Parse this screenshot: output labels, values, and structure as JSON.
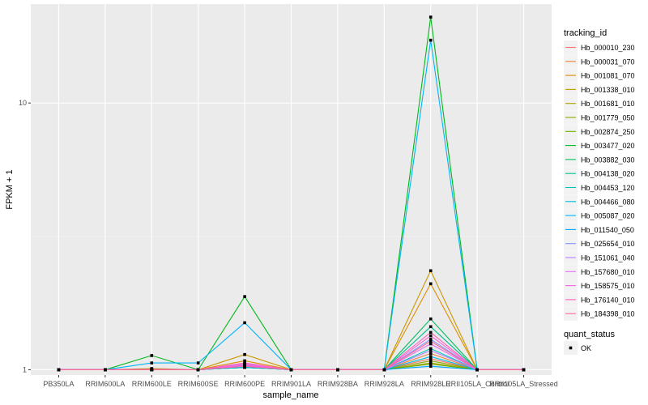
{
  "chart_data": {
    "type": "line",
    "title": "",
    "xlabel": "sample_name",
    "ylabel": "FPKM + 1",
    "y_scale": "log10",
    "ylim": [
      0.955,
      23.5
    ],
    "y_ticks": [
      1,
      10
    ],
    "y_tick_labels": [
      "1",
      "10"
    ],
    "categories": [
      "PB350LA",
      "RRIM600LA",
      "RRIM600LE",
      "RRIM600SE",
      "RRIM600PE",
      "RRIM901LA",
      "RRIM928BA",
      "RRIM928LA",
      "RRIM928LE",
      "RRII105LA_Control",
      "RRII105LA_Stressed"
    ],
    "legend_title": "tracking_id",
    "series": [
      {
        "name": "Hb_000010_230",
        "color": "#F8766D",
        "values": [
          1,
          1,
          1.0,
          1.0,
          1.03,
          1,
          1,
          1,
          1.1,
          1,
          1
        ]
      },
      {
        "name": "Hb_000031_070",
        "color": "#EC8239",
        "values": [
          1,
          1,
          1.0,
          1.0,
          1.02,
          1,
          1,
          1,
          1.15,
          1,
          1
        ]
      },
      {
        "name": "Hb_001081_070",
        "color": "#DB8E00",
        "values": [
          1,
          1,
          1.0,
          1.0,
          1.08,
          1,
          1,
          1,
          2.1,
          1,
          1
        ]
      },
      {
        "name": "Hb_001338_010",
        "color": "#C79800",
        "values": [
          1,
          1,
          1.01,
          1.0,
          1.14,
          1,
          1,
          1,
          2.35,
          1,
          1
        ]
      },
      {
        "name": "Hb_001681_010",
        "color": "#AEA200",
        "values": [
          1,
          1,
          1.0,
          1.0,
          1.05,
          1,
          1,
          1,
          1.06,
          1,
          1
        ]
      },
      {
        "name": "Hb_001779_050",
        "color": "#8FAA00",
        "values": [
          1,
          1,
          1.0,
          1.0,
          1.04,
          1,
          1,
          1,
          1.08,
          1,
          1
        ]
      },
      {
        "name": "Hb_002874_250",
        "color": "#64B200",
        "values": [
          1,
          1,
          1.0,
          1.0,
          1.02,
          1,
          1,
          1,
          1.05,
          1,
          1
        ]
      },
      {
        "name": "Hb_003477_020",
        "color": "#00B81B",
        "values": [
          1,
          1,
          1.13,
          1.0,
          1.88,
          1,
          1,
          1,
          21.0,
          1,
          1
        ]
      },
      {
        "name": "Hb_003882_030",
        "color": "#00BD5C",
        "values": [
          1,
          1,
          1.0,
          1.0,
          1.03,
          1,
          1,
          1,
          1.55,
          1,
          1
        ]
      },
      {
        "name": "Hb_004138_020",
        "color": "#00C08E",
        "values": [
          1,
          1,
          1.0,
          1.0,
          1.02,
          1,
          1,
          1,
          1.45,
          1,
          1
        ]
      },
      {
        "name": "Hb_004453_120",
        "color": "#00C1B7",
        "values": [
          1,
          1,
          1.0,
          1.0,
          1.02,
          1,
          1,
          1,
          1.2,
          1,
          1
        ]
      },
      {
        "name": "Hb_004466_080",
        "color": "#00BDDC",
        "values": [
          1,
          1,
          1.0,
          1.0,
          1.02,
          1,
          1,
          1,
          1.12,
          1,
          1
        ]
      },
      {
        "name": "Hb_005087_020",
        "color": "#00B5F9",
        "values": [
          1,
          1,
          1.06,
          1.06,
          1.5,
          1,
          1,
          1,
          17.2,
          1,
          1
        ]
      },
      {
        "name": "Hb_011540_050",
        "color": "#00A5FF",
        "values": [
          1,
          1,
          1.0,
          1.0,
          1.03,
          1,
          1,
          1,
          1.03,
          1,
          1
        ]
      },
      {
        "name": "Hb_025654_010",
        "color": "#7F96FF",
        "values": [
          1,
          1,
          1.0,
          1.0,
          1.04,
          1,
          1,
          1,
          1.3,
          1,
          1
        ]
      },
      {
        "name": "Hb_151061_040",
        "color": "#BC81FF",
        "values": [
          1,
          1,
          1.0,
          1.0,
          1.03,
          1,
          1,
          1,
          1.18,
          1,
          1
        ]
      },
      {
        "name": "Hb_157680_010",
        "color": "#E26EF7",
        "values": [
          1,
          1,
          1.0,
          1.0,
          1.05,
          1,
          1,
          1,
          1.25,
          1,
          1
        ]
      },
      {
        "name": "Hb_158575_010",
        "color": "#F863DF",
        "values": [
          1,
          1,
          1.0,
          1.0,
          1.04,
          1,
          1,
          1,
          1.34,
          1,
          1
        ]
      },
      {
        "name": "Hb_176140_010",
        "color": "#FF62BC",
        "values": [
          1,
          1,
          1.0,
          1.0,
          1.06,
          1,
          1,
          1,
          1.38,
          1,
          1
        ]
      },
      {
        "name": "Hb_184398_010",
        "color": "#FF6A95",
        "values": [
          1,
          1,
          1.0,
          1.0,
          1.03,
          1,
          1,
          1,
          1.28,
          1,
          1
        ]
      }
    ],
    "shape_legend": {
      "title": "quant_status",
      "items": [
        "OK"
      ]
    }
  }
}
